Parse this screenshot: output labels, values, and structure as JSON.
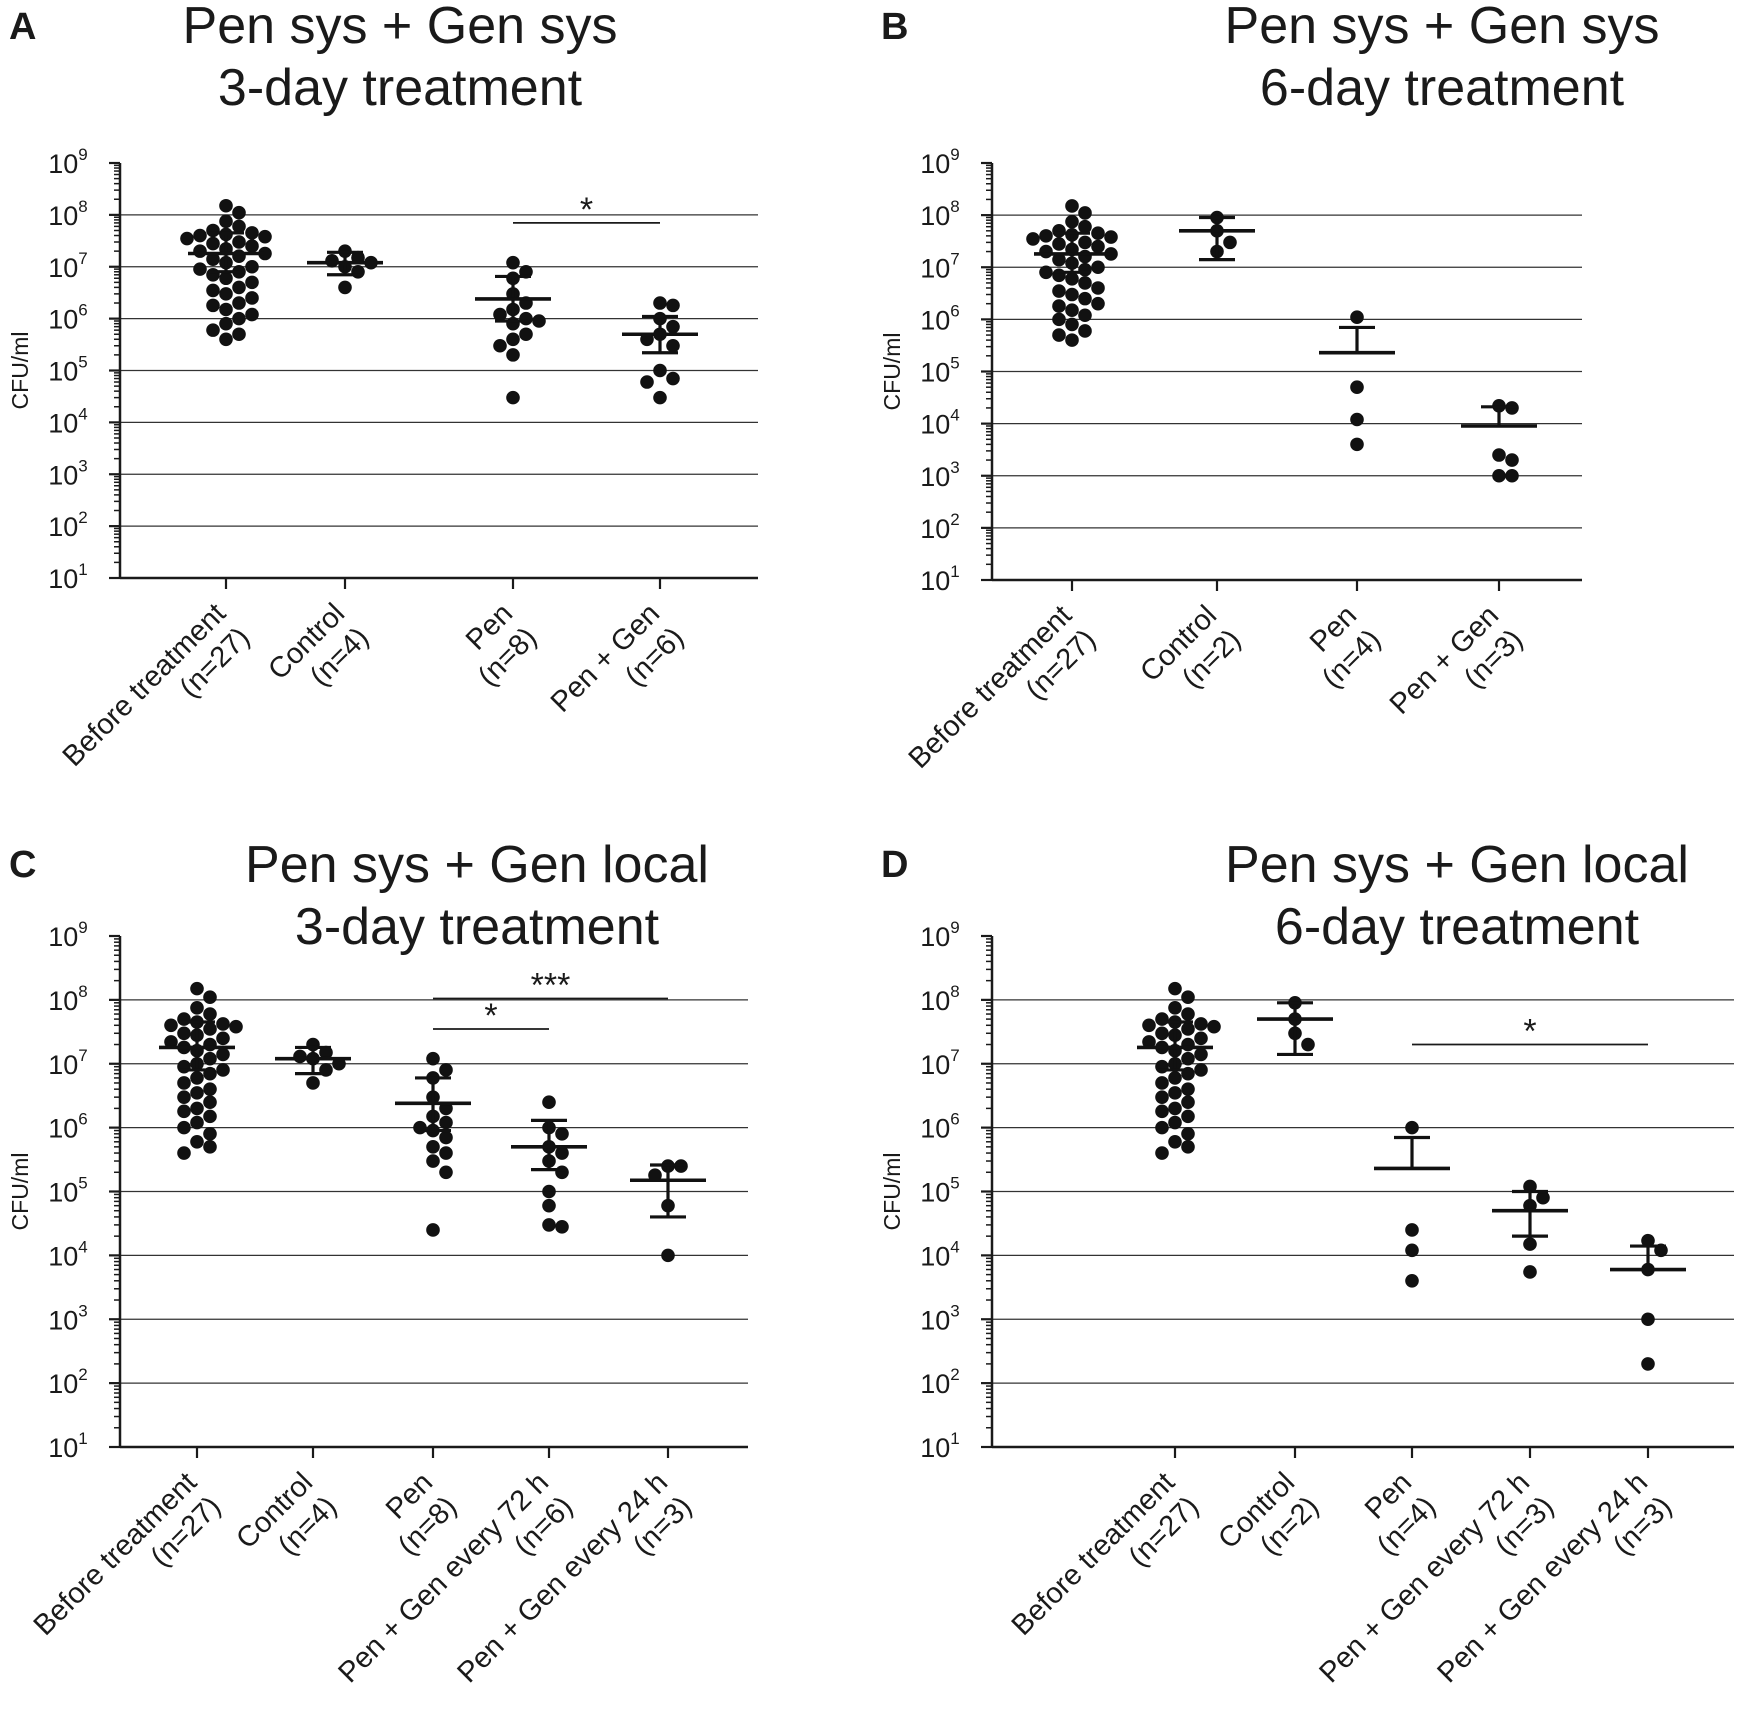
{
  "figure": {
    "ylabel": "CFU/ml",
    "y_tick_labels": [
      {
        "base": "10",
        "exp": "1"
      },
      {
        "base": "10",
        "exp": "2"
      },
      {
        "base": "10",
        "exp": "3"
      },
      {
        "base": "10",
        "exp": "4"
      },
      {
        "base": "10",
        "exp": "5"
      },
      {
        "base": "10",
        "exp": "6"
      },
      {
        "base": "10",
        "exp": "7"
      },
      {
        "base": "10",
        "exp": "8"
      },
      {
        "base": "10",
        "exp": "9"
      }
    ]
  },
  "chart_data": [
    {
      "panel": "A",
      "type": "scatter",
      "title_lines": [
        "Pen sys + Gen sys",
        "3-day treatment"
      ],
      "ylabel": "CFU/ml",
      "yscale": "log",
      "ylim": [
        10,
        1000000000
      ],
      "grid": true,
      "categories": [
        {
          "line1": "Before treatment",
          "line2": "(n=27)",
          "mean": 18000000,
          "err_low": 8000000,
          "err_high": 45000000,
          "points": [
            150000000,
            110000000,
            75000000,
            60000000,
            50000000,
            45000000,
            42000000,
            40000000,
            38000000,
            35000000,
            30000000,
            28000000,
            25000000,
            22000000,
            20000000,
            18000000,
            16000000,
            14000000,
            12000000,
            10000000,
            9000000,
            8000000,
            7000000,
            6000000,
            5000000,
            4000000,
            3500000,
            3000000,
            2500000,
            2000000,
            1800000,
            1500000,
            1200000,
            1000000,
            800000,
            600000,
            500000,
            400000
          ]
        },
        {
          "line1": "Control",
          "line2": "(n=4)",
          "mean": 12000000,
          "err_low": 7000000,
          "err_high": 19000000,
          "points": [
            20000000,
            15000000,
            13000000,
            12000000,
            10000000,
            8000000,
            4000000
          ]
        },
        {
          "line1": "Pen",
          "line2": "(n=8)",
          "mean": 2400000,
          "err_low": 900000,
          "err_high": 6500000,
          "points": [
            12000000,
            8000000,
            6000000,
            3000000,
            2000000,
            1500000,
            1200000,
            1000000,
            900000,
            800000,
            500000,
            400000,
            300000,
            200000,
            30000
          ]
        },
        {
          "line1": "Pen + Gen",
          "line2": "(n=6)",
          "mean": 500000,
          "err_low": 220000,
          "err_high": 1100000,
          "points": [
            2000000,
            1800000,
            1000000,
            700000,
            500000,
            400000,
            300000,
            100000,
            70000,
            60000,
            30000
          ]
        }
      ],
      "significance": [
        {
          "from": 2,
          "to": 3,
          "label": "*",
          "y": 70000000
        }
      ]
    },
    {
      "panel": "B",
      "type": "scatter",
      "title_lines": [
        "Pen sys + Gen sys",
        "6-day treatment"
      ],
      "ylabel": "CFU/ml",
      "yscale": "log",
      "ylim": [
        10,
        1000000000
      ],
      "grid": true,
      "categories": [
        {
          "line1": "Before treatment",
          "line2": "(n=27)",
          "mean": 18000000,
          "err_low": 8000000,
          "err_high": 45000000,
          "points": [
            150000000,
            110000000,
            75000000,
            60000000,
            50000000,
            45000000,
            42000000,
            40000000,
            38000000,
            35000000,
            30000000,
            28000000,
            25000000,
            22000000,
            20000000,
            18000000,
            16000000,
            14000000,
            12000000,
            10000000,
            9000000,
            8000000,
            7000000,
            6000000,
            5000000,
            4000000,
            3500000,
            3000000,
            2500000,
            2000000,
            1800000,
            1500000,
            1200000,
            1000000,
            800000,
            600000,
            500000,
            400000
          ]
        },
        {
          "line1": "Control",
          "line2": "(n=2)",
          "mean": 50000000,
          "err_low": 14000000,
          "err_high": 90000000,
          "points": [
            90000000,
            50000000,
            30000000,
            20000000
          ]
        },
        {
          "line1": "Pen",
          "line2": "(n=4)",
          "mean": 230000,
          "err_low": 230000,
          "err_high": 700000,
          "points": [
            1100000,
            50000,
            12000,
            4000
          ]
        },
        {
          "line1": "Pen + Gen",
          "line2": "(n=3)",
          "mean": 9000,
          "err_low": 9000,
          "err_high": 21000,
          "points": [
            22000,
            20000,
            2500,
            2000,
            1000,
            1000
          ]
        }
      ],
      "significance": []
    },
    {
      "panel": "C",
      "type": "scatter",
      "title_lines": [
        "Pen sys + Gen local",
        "3-day treatment"
      ],
      "ylabel": "CFU/ml",
      "yscale": "log",
      "ylim": [
        10,
        1000000000
      ],
      "grid": true,
      "categories": [
        {
          "line1": "Before treatment",
          "line2": "(n=27)",
          "mean": 18000000,
          "err_low": 8000000,
          "err_high": 45000000,
          "points": [
            150000000,
            110000000,
            75000000,
            60000000,
            50000000,
            45000000,
            42000000,
            40000000,
            38000000,
            35000000,
            30000000,
            28000000,
            25000000,
            22000000,
            20000000,
            18000000,
            16000000,
            14000000,
            12000000,
            10000000,
            9000000,
            8000000,
            7000000,
            6000000,
            5000000,
            4000000,
            3500000,
            3000000,
            2500000,
            2000000,
            1800000,
            1500000,
            1200000,
            1000000,
            800000,
            600000,
            500000,
            400000
          ]
        },
        {
          "line1": "Control",
          "line2": "(n=4)",
          "mean": 12000000,
          "err_low": 7000000,
          "err_high": 18000000,
          "points": [
            20000000,
            15000000,
            13000000,
            12000000,
            10000000,
            8000000,
            5000000
          ]
        },
        {
          "line1": "Pen",
          "line2": "(n=8)",
          "mean": 2400000,
          "err_low": 900000,
          "err_high": 6000000,
          "points": [
            12000000,
            8000000,
            6000000,
            3000000,
            2000000,
            1500000,
            1200000,
            1000000,
            900000,
            700000,
            500000,
            400000,
            300000,
            200000,
            25000
          ]
        },
        {
          "line1": "Pen + Gen every 72 h",
          "line2": "(n=6)",
          "mean": 500000,
          "err_low": 220000,
          "err_high": 1300000,
          "points": [
            2500000,
            1000000,
            800000,
            500000,
            400000,
            300000,
            200000,
            100000,
            60000,
            30000,
            28000
          ]
        },
        {
          "line1": "Pen + Gen every 24 h",
          "line2": "(n=3)",
          "mean": 150000,
          "err_low": 40000,
          "err_high": 260000,
          "points": [
            250000,
            250000,
            180000,
            60000,
            10000
          ]
        }
      ],
      "significance": [
        {
          "from": 2,
          "to": 4,
          "label": "***",
          "y": 105000000
        },
        {
          "from": 2,
          "to": 3,
          "label": "*",
          "y": 35000000
        }
      ]
    },
    {
      "panel": "D",
      "type": "scatter",
      "title_lines": [
        "Pen sys + Gen local",
        "6-day treatment"
      ],
      "ylabel": "CFU/ml",
      "yscale": "log",
      "ylim": [
        10,
        1000000000
      ],
      "grid": true,
      "categories": [
        {
          "line1": "Before treatment",
          "line2": "(n=27)",
          "mean": 18000000,
          "err_low": 8000000,
          "err_high": 45000000,
          "points": [
            150000000,
            110000000,
            75000000,
            60000000,
            50000000,
            45000000,
            42000000,
            40000000,
            38000000,
            35000000,
            30000000,
            28000000,
            25000000,
            22000000,
            20000000,
            18000000,
            16000000,
            14000000,
            12000000,
            10000000,
            9000000,
            8000000,
            7000000,
            6000000,
            5000000,
            4000000,
            3500000,
            3000000,
            2500000,
            2000000,
            1800000,
            1500000,
            1200000,
            1000000,
            800000,
            600000,
            500000,
            400000
          ]
        },
        {
          "line1": "Control",
          "line2": "(n=2)",
          "mean": 50000000,
          "err_low": 14000000,
          "err_high": 90000000,
          "points": [
            90000000,
            50000000,
            30000000,
            20000000
          ]
        },
        {
          "line1": "Pen",
          "line2": "(n=4)",
          "mean": 230000,
          "err_low": 230000,
          "err_high": 700000,
          "points": [
            1000000,
            25000,
            12000,
            4000
          ]
        },
        {
          "line1": "Pen + Gen every 72 h",
          "line2": "(n=3)",
          "mean": 50000,
          "err_low": 20000,
          "err_high": 100000,
          "points": [
            120000,
            80000,
            60000,
            15000,
            5500
          ]
        },
        {
          "line1": "Pen + Gen every 24 h",
          "line2": "(n=3)",
          "mean": 6000,
          "err_low": 6000,
          "err_high": 14000,
          "points": [
            17000,
            12000,
            6000,
            1000,
            200
          ]
        }
      ],
      "significance": [
        {
          "from": 2,
          "to": 4,
          "label": "*",
          "y": 20000000
        }
      ]
    }
  ]
}
